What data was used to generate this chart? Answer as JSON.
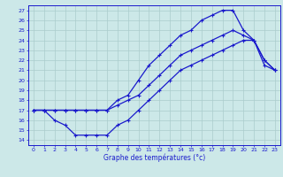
{
  "title": "Graphe des températures (°c)",
  "bg_color": "#cce8e8",
  "grid_color": "#aacccc",
  "line_color": "#1a1acc",
  "xlim": [
    -0.5,
    23.5
  ],
  "ylim": [
    13.5,
    27.5
  ],
  "yticks": [
    14,
    15,
    16,
    17,
    18,
    19,
    20,
    21,
    22,
    23,
    24,
    25,
    26,
    27
  ],
  "xticks": [
    0,
    1,
    2,
    3,
    4,
    5,
    6,
    7,
    8,
    9,
    10,
    11,
    12,
    13,
    14,
    15,
    16,
    17,
    18,
    19,
    20,
    21,
    22,
    23
  ],
  "line_min_x": [
    0,
    1,
    2,
    3,
    4,
    5,
    6,
    7,
    8,
    9,
    10,
    11,
    12,
    13,
    14,
    15,
    16,
    17,
    18,
    19,
    20,
    21,
    22,
    23
  ],
  "line_min_y": [
    17,
    17,
    16,
    15.5,
    14.5,
    14.5,
    14.5,
    14.5,
    15.5,
    16,
    17,
    18,
    19,
    20,
    21,
    21.5,
    22,
    22.5,
    23,
    23.5,
    24,
    24,
    22,
    21
  ],
  "line_max_x": [
    0,
    1,
    2,
    3,
    4,
    5,
    6,
    7,
    8,
    9,
    10,
    11,
    12,
    13,
    14,
    15,
    16,
    17,
    18,
    19,
    20,
    21,
    22,
    23
  ],
  "line_max_y": [
    17,
    17,
    17,
    17,
    17,
    17,
    17,
    17,
    18,
    18.5,
    20,
    21.5,
    22.5,
    23.5,
    24.5,
    25,
    26,
    26.5,
    27,
    27,
    25,
    24,
    22,
    21
  ],
  "line_avg_x": [
    0,
    1,
    2,
    3,
    4,
    5,
    6,
    7,
    8,
    9,
    10,
    11,
    12,
    13,
    14,
    15,
    16,
    17,
    18,
    19,
    20,
    21,
    22,
    23
  ],
  "line_avg_y": [
    17,
    17,
    17,
    17,
    17,
    17,
    17,
    17,
    17.5,
    18,
    18.5,
    19.5,
    20.5,
    21.5,
    22.5,
    23,
    23.5,
    24,
    24.5,
    25,
    24.5,
    24,
    21.5,
    21
  ]
}
